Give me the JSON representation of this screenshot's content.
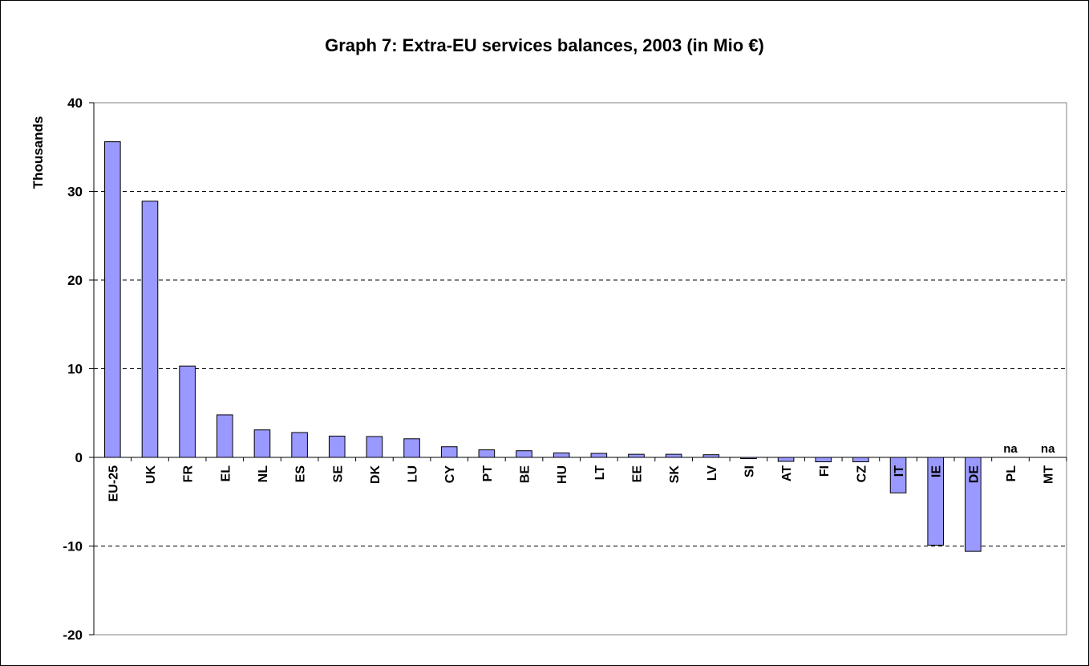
{
  "chart_data": {
    "type": "bar",
    "title": "Graph 7: Extra-EU services balances, 2003 (in Mio €)",
    "ylabel": "Thousands",
    "xlabel": "",
    "ylim": [
      -20,
      40
    ],
    "yticks": [
      -20,
      -10,
      0,
      10,
      20,
      30,
      40
    ],
    "grid": "horizontal dashed",
    "bar_color": "#9999ff",
    "categories": [
      "EU-25",
      "UK",
      "FR",
      "EL",
      "NL",
      "ES",
      "SE",
      "DK",
      "LU",
      "CY",
      "PT",
      "BE",
      "HU",
      "LT",
      "EE",
      "SK",
      "LV",
      "SI",
      "AT",
      "FI",
      "CZ",
      "IT",
      "IE",
      "DE",
      "PL",
      "MT"
    ],
    "values": [
      35.6,
      28.9,
      10.3,
      4.8,
      3.1,
      2.8,
      2.4,
      2.35,
      2.1,
      1.2,
      0.85,
      0.75,
      0.5,
      0.45,
      0.35,
      0.35,
      0.3,
      -0.1,
      -0.45,
      -0.5,
      -0.5,
      -4.0,
      -9.9,
      -10.6,
      null,
      null
    ],
    "missing_label": "na"
  }
}
